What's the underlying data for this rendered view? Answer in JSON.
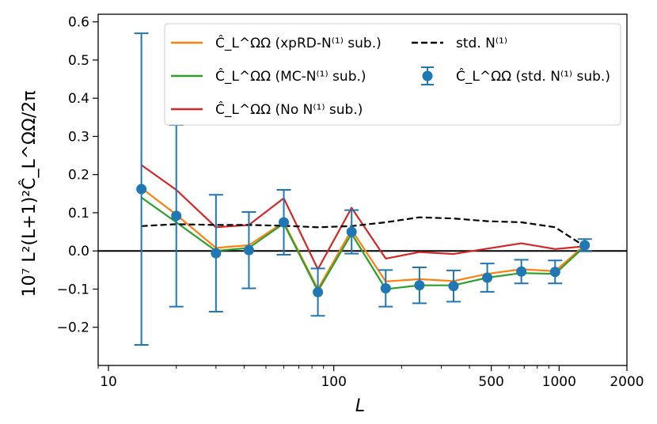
{
  "chart_data": {
    "type": "line",
    "xscale": "log",
    "xlim": [
      9,
      2000
    ],
    "ylim": [
      -0.3,
      0.62
    ],
    "xticks": [
      {
        "value": 10,
        "label": "10"
      },
      {
        "value": 100,
        "label": "100"
      },
      {
        "value": 500,
        "label": "500"
      },
      {
        "value": 1000,
        "label": "1000"
      },
      {
        "value": 2000,
        "label": "2000"
      }
    ],
    "yticks": [
      {
        "value": -0.2,
        "label": "−0.2"
      },
      {
        "value": -0.1,
        "label": "−0.1"
      },
      {
        "value": 0.0,
        "label": "0.0"
      },
      {
        "value": 0.1,
        "label": "0.1"
      },
      {
        "value": 0.2,
        "label": "0.2"
      },
      {
        "value": 0.3,
        "label": "0.3"
      },
      {
        "value": 0.4,
        "label": "0.4"
      },
      {
        "value": 0.5,
        "label": "0.5"
      },
      {
        "value": 0.6,
        "label": "0.6"
      }
    ],
    "xlabel": "L",
    "ylabel": "10⁷ L²(L+1)²Ĉ_L^ΩΩ/2π",
    "zero_line": 0,
    "legend_position": "upper center",
    "x": [
      14,
      20,
      30,
      42,
      60,
      85,
      120,
      170,
      240,
      340,
      480,
      680,
      960,
      1300
    ],
    "series": [
      {
        "name": "xpRD-N(1) sub.",
        "legend_label": "Ĉ_L^ΩΩ (xpRD-N⁽¹⁾ sub.)",
        "style": "line",
        "color": "#ff7f0e",
        "values": [
          0.165,
          0.095,
          0.008,
          0.015,
          0.075,
          -0.1,
          0.055,
          -0.08,
          -0.074,
          -0.079,
          -0.06,
          -0.048,
          -0.053,
          0.015
        ]
      },
      {
        "name": "MC-N(1) sub.",
        "legend_label": "Ĉ_L^ΩΩ (MC-N⁽¹⁾ sub.)",
        "style": "line",
        "color": "#2ca02c",
        "values": [
          0.14,
          0.075,
          0.0,
          0.008,
          0.072,
          -0.105,
          0.045,
          -0.1,
          -0.09,
          -0.09,
          -0.07,
          -0.058,
          -0.06,
          0.012
        ]
      },
      {
        "name": "No N(1) sub.",
        "legend_label": "Ĉ_L^ΩΩ (No N⁽¹⁾ sub.)",
        "style": "line",
        "color": "#d62728",
        "values": [
          0.225,
          0.16,
          0.062,
          0.068,
          0.138,
          -0.048,
          0.113,
          -0.02,
          -0.003,
          -0.008,
          0.006,
          0.02,
          0.005,
          0.012
        ]
      },
      {
        "name": "std. N(1)",
        "legend_label": "std. N⁽¹⁾",
        "style": "dashed",
        "color": "#000000",
        "values": [
          0.065,
          0.07,
          0.068,
          0.068,
          0.066,
          0.062,
          0.065,
          0.075,
          0.088,
          0.085,
          0.078,
          0.075,
          0.062,
          0.012
        ]
      },
      {
        "name": "std. N(1) sub.",
        "legend_label": "Ĉ_L^ΩΩ (std. N⁽¹⁾ sub.)",
        "style": "errorbar",
        "color": "#1f77b4",
        "values": [
          0.162,
          0.092,
          -0.006,
          0.002,
          0.075,
          -0.108,
          0.05,
          -0.098,
          -0.09,
          -0.092,
          -0.07,
          -0.054,
          -0.055,
          0.015
        ],
        "yerr": [
          0.408,
          0.238,
          0.153,
          0.1,
          0.085,
          0.062,
          0.057,
          0.048,
          0.047,
          0.041,
          0.037,
          0.031,
          0.03,
          0.016
        ]
      }
    ]
  }
}
